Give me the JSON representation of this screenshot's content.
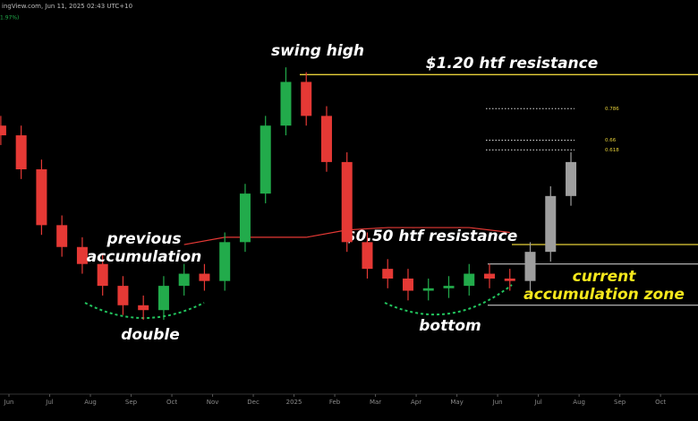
{
  "header": {
    "source": "ingView.com, Jun 11, 2025 02:43 UTC+10",
    "change": "1.97%)"
  },
  "chart_data": {
    "type": "candlestick",
    "x": [
      -0.2,
      0.3,
      0.8,
      1.3,
      1.8,
      2.3,
      2.8,
      3.3,
      3.8,
      4.3,
      4.8,
      5.3,
      5.8,
      6.3,
      6.8,
      7.3,
      7.8,
      8.3,
      8.8,
      9.3,
      9.8,
      10.3,
      10.8,
      11.3,
      11.8,
      12.3,
      12.8,
      13.3,
      13.8
    ],
    "opens": [
      0.99,
      0.95,
      0.81,
      0.58,
      0.49,
      0.42,
      0.33,
      0.25,
      0.23,
      0.33,
      0.38,
      0.35,
      0.51,
      0.71,
      0.99,
      1.17,
      1.03,
      0.84,
      0.51,
      0.4,
      0.36,
      0.31,
      0.32,
      0.33,
      0.38,
      0.36,
      0.35,
      0.47,
      0.7
    ],
    "highs": [
      1.03,
      0.99,
      0.85,
      0.62,
      0.53,
      0.46,
      0.37,
      0.29,
      0.37,
      0.42,
      0.42,
      0.55,
      0.75,
      1.03,
      1.23,
      1.21,
      1.07,
      0.88,
      0.55,
      0.44,
      0.4,
      0.36,
      0.37,
      0.42,
      0.42,
      0.4,
      0.51,
      0.74,
      0.88
    ],
    "lows": [
      0.91,
      0.77,
      0.54,
      0.45,
      0.38,
      0.29,
      0.21,
      0.19,
      0.19,
      0.29,
      0.31,
      0.31,
      0.47,
      0.67,
      0.95,
      0.99,
      0.8,
      0.47,
      0.36,
      0.32,
      0.27,
      0.27,
      0.28,
      0.29,
      0.32,
      0.31,
      0.31,
      0.43,
      0.66
    ],
    "closes": [
      0.95,
      0.81,
      0.58,
      0.49,
      0.42,
      0.33,
      0.25,
      0.23,
      0.33,
      0.38,
      0.35,
      0.51,
      0.71,
      0.99,
      1.17,
      1.03,
      0.84,
      0.51,
      0.4,
      0.36,
      0.31,
      0.32,
      0.33,
      0.38,
      0.36,
      0.35,
      0.47,
      0.7,
      0.84
    ],
    "colors": [
      "#e53935",
      "#e53935",
      "#e53935",
      "#e53935",
      "#e53935",
      "#e53935",
      "#e53935",
      "#e53935",
      "#22ab4b",
      "#22ab4b",
      "#e53935",
      "#22ab4b",
      "#22ab4b",
      "#22ab4b",
      "#22ab4b",
      "#e53935",
      "#e53935",
      "#e53935",
      "#e53935",
      "#e53935",
      "#e53935",
      "#22ab4b",
      "#22ab4b",
      "#22ab4b",
      "#e53935",
      "#e53935",
      "#9e9e9e",
      "#9e9e9e",
      "#9e9e9e"
    ],
    "moving_average": {
      "color": "#e53935",
      "x": [
        4.3,
        5.3,
        6.3,
        7.3,
        8.3,
        9.3,
        10.3,
        11.3,
        12.3
      ],
      "values": [
        0.5,
        0.53,
        0.53,
        0.53,
        0.56,
        0.57,
        0.57,
        0.57,
        0.55
      ]
    },
    "xlim": [
      -0.22,
      16.92
    ],
    "xticks": [
      {
        "value": 0,
        "label": "Jun"
      },
      {
        "value": 1,
        "label": "Jul"
      },
      {
        "value": 2,
        "label": "Aug"
      },
      {
        "value": 3,
        "label": "Sep"
      },
      {
        "value": 4,
        "label": "Oct"
      },
      {
        "value": 5,
        "label": "Nov"
      },
      {
        "value": 6,
        "label": "Dec"
      },
      {
        "value": 7,
        "label": "2025"
      },
      {
        "value": 8,
        "label": "Feb"
      },
      {
        "value": 9,
        "label": "Mar"
      },
      {
        "value": 10,
        "label": "Apr"
      },
      {
        "value": 11,
        "label": "May"
      },
      {
        "value": 12,
        "label": "Jun"
      },
      {
        "value": 13,
        "label": "Jul"
      },
      {
        "value": 14,
        "label": "Aug"
      },
      {
        "value": 15,
        "label": "Sep"
      },
      {
        "value": 16,
        "label": "Oct"
      }
    ],
    "ylim": [
      0.05,
      1.5
    ],
    "levels": [
      {
        "label": "$1.20 htf resistance",
        "price": 1.2,
        "color": "#e6d03a"
      },
      {
        "label": "$0.50 htf resistance",
        "price": 0.5,
        "color": "#e6d03a"
      }
    ],
    "fib_levels": [
      {
        "ratio": 0.786,
        "price": 1.06
      },
      {
        "ratio": 0.66,
        "price": 0.93
      },
      {
        "ratio": 0.618,
        "price": 0.89
      }
    ],
    "accumulation_zone": {
      "low": 0.25,
      "high": 0.42,
      "label": [
        "current",
        "accumulation zone"
      ],
      "color": "#f5e71c"
    },
    "annotations": [
      {
        "text": "swing high",
        "color": "#ffffff"
      },
      {
        "text": "previous",
        "color": "#ffffff"
      },
      {
        "text": "accumulation",
        "color": "#ffffff"
      },
      {
        "text": "double",
        "color": "#ffffff"
      },
      {
        "text": "bottom",
        "color": "#ffffff"
      }
    ]
  }
}
